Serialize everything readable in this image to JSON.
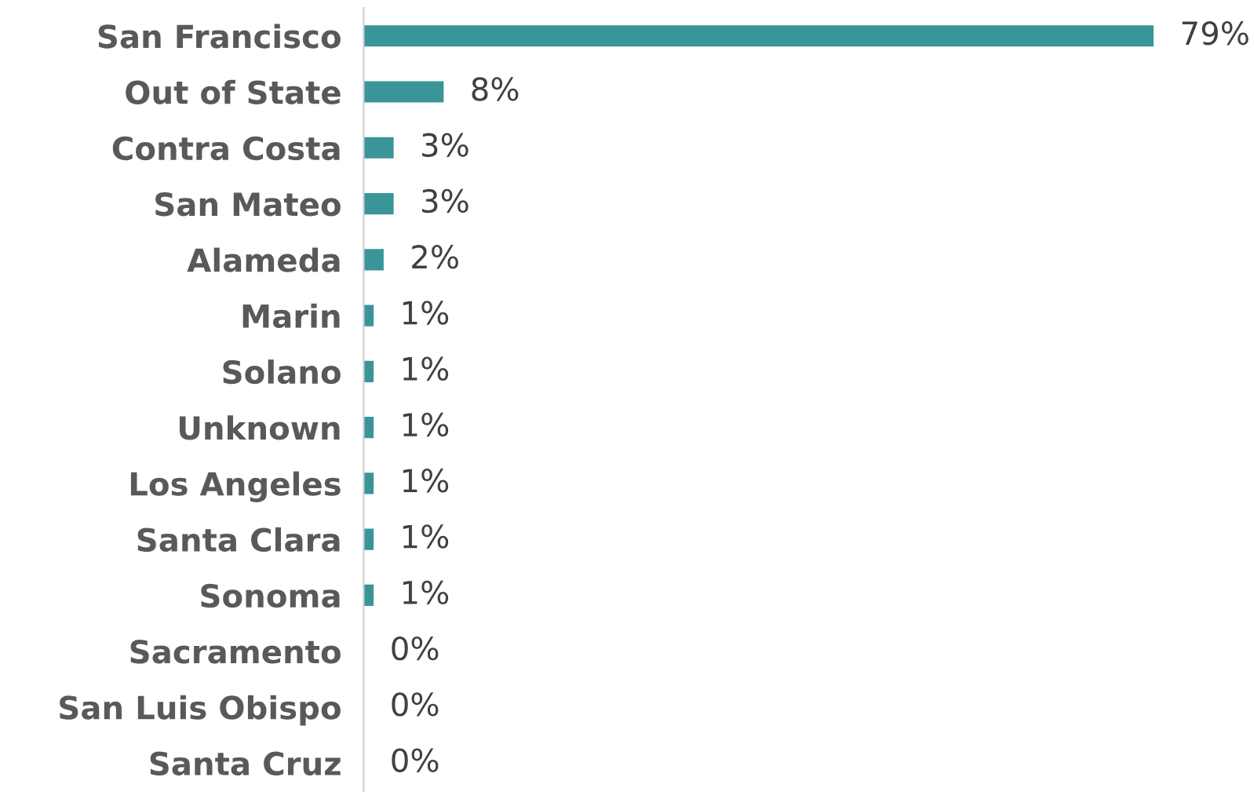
{
  "chart_data": {
    "type": "bar",
    "orientation": "horizontal",
    "categories": [
      "San Francisco",
      "Out of State",
      "Contra Costa",
      "San Mateo",
      "Alameda",
      "Marin",
      "Solano",
      "Unknown",
      "Los Angeles",
      "Santa Clara",
      "Sonoma",
      "Sacramento",
      "San Luis Obispo",
      "Santa Cruz"
    ],
    "values": [
      79,
      8,
      3,
      3,
      2,
      1,
      1,
      1,
      1,
      1,
      1,
      0,
      0,
      0
    ],
    "value_labels": [
      "79%",
      "8%",
      "3%",
      "3%",
      "2%",
      "1%",
      "1%",
      "1%",
      "1%",
      "1%",
      "1%",
      "0%",
      "0%",
      "0%"
    ],
    "color": "#3a9599",
    "grid": false,
    "legend": false
  }
}
